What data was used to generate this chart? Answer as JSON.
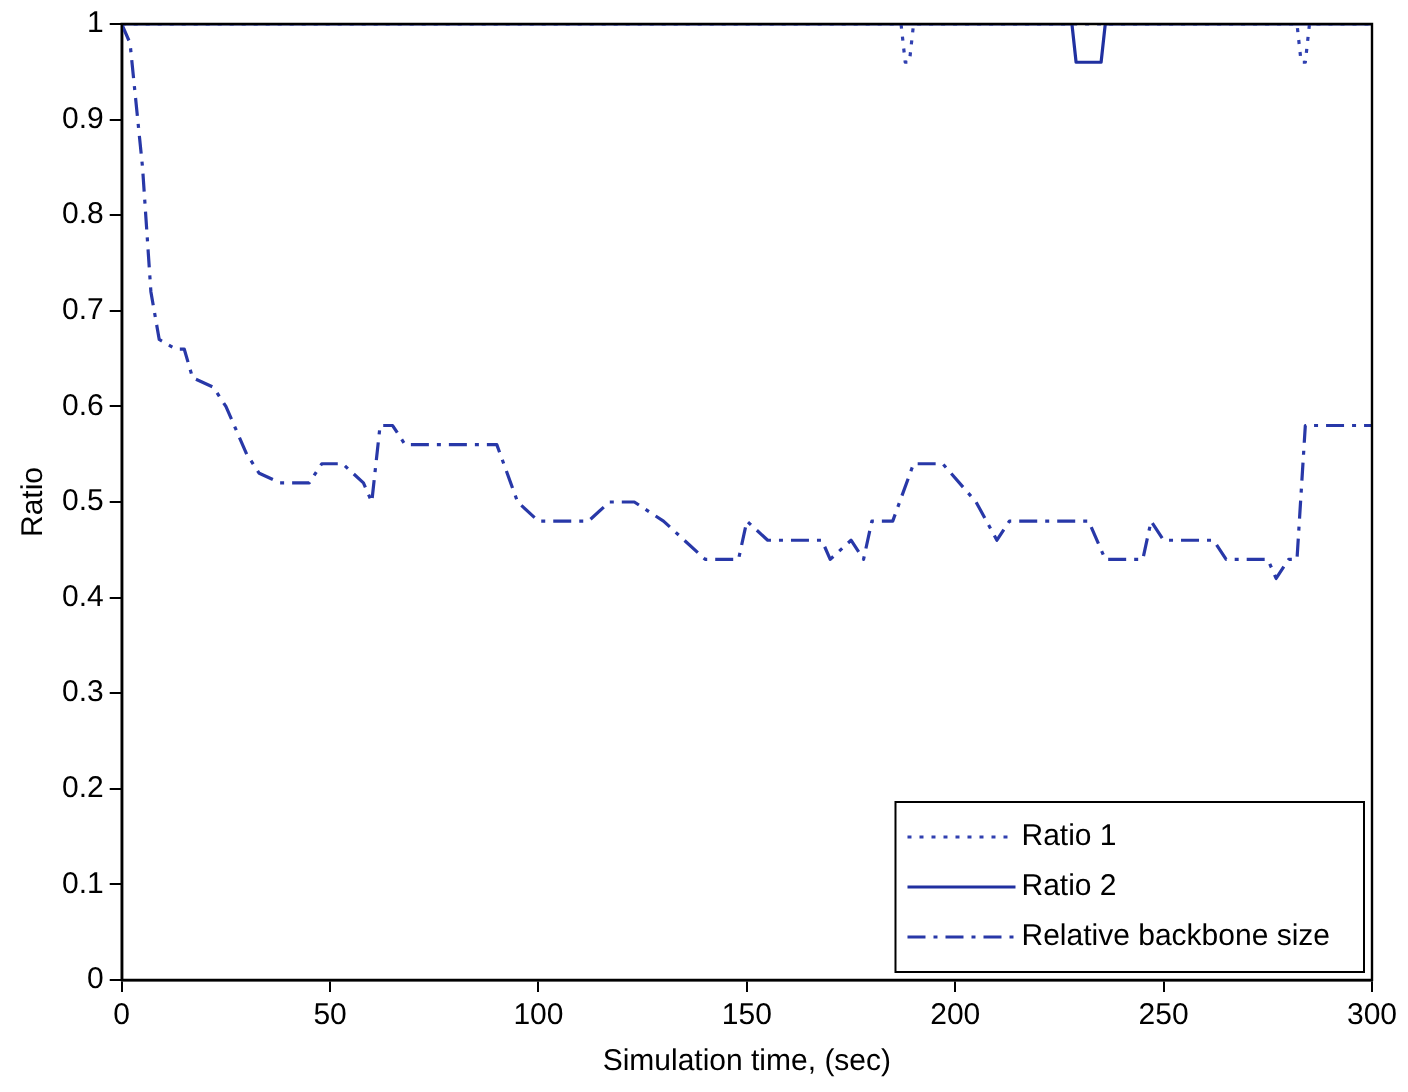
{
  "chart_data": {
    "type": "line",
    "xlabel": "Simulation time, (sec)",
    "ylabel": "Ratio",
    "xlim": [
      0,
      300
    ],
    "ylim": [
      0,
      1
    ],
    "xticks": [
      0,
      50,
      100,
      150,
      200,
      250,
      300
    ],
    "yticks": [
      0,
      0.1,
      0.2,
      0.3,
      0.4,
      0.5,
      0.6,
      0.7,
      0.8,
      0.9,
      1
    ],
    "grid": false,
    "legend": "bottom right",
    "marker": "none",
    "series": [
      {
        "name": "Ratio 1",
        "color": "#3040b0",
        "line_style": "dotted",
        "x": [
          0,
          187,
          188,
          189,
          190,
          282,
          283,
          284,
          285,
          300
        ],
        "values": [
          1,
          1,
          0.96,
          0.96,
          1,
          1,
          0.96,
          0.96,
          1,
          1
        ]
      },
      {
        "name": "Ratio 2",
        "color": "#2030a0",
        "line_style": "solid",
        "x": [
          0,
          228,
          229,
          235,
          236,
          300
        ],
        "values": [
          1,
          1,
          0.96,
          0.96,
          1,
          1
        ]
      },
      {
        "name": "Relative backbone size",
        "color": "#2838a8",
        "line_style": "dashdot",
        "x": [
          0,
          2,
          5,
          7,
          9,
          13,
          15,
          17,
          22,
          25,
          30,
          33,
          38,
          45,
          48,
          53,
          58,
          60,
          62,
          65,
          68,
          90,
          95,
          100,
          112,
          117,
          123,
          130,
          135,
          140,
          148,
          150,
          155,
          168,
          170,
          175,
          178,
          180,
          185,
          190,
          197,
          205,
          210,
          213,
          225,
          232,
          236,
          245,
          247,
          250,
          262,
          265,
          275,
          277,
          280,
          282,
          284,
          300
        ],
        "values": [
          1,
          0.98,
          0.85,
          0.72,
          0.67,
          0.66,
          0.66,
          0.63,
          0.62,
          0.6,
          0.55,
          0.53,
          0.52,
          0.52,
          0.54,
          0.54,
          0.52,
          0.5,
          0.58,
          0.58,
          0.56,
          0.56,
          0.5,
          0.48,
          0.48,
          0.5,
          0.5,
          0.48,
          0.46,
          0.44,
          0.44,
          0.48,
          0.46,
          0.46,
          0.44,
          0.46,
          0.44,
          0.48,
          0.48,
          0.54,
          0.54,
          0.5,
          0.46,
          0.48,
          0.48,
          0.48,
          0.44,
          0.44,
          0.48,
          0.46,
          0.46,
          0.44,
          0.44,
          0.42,
          0.44,
          0.44,
          0.58,
          0.58
        ]
      }
    ]
  }
}
